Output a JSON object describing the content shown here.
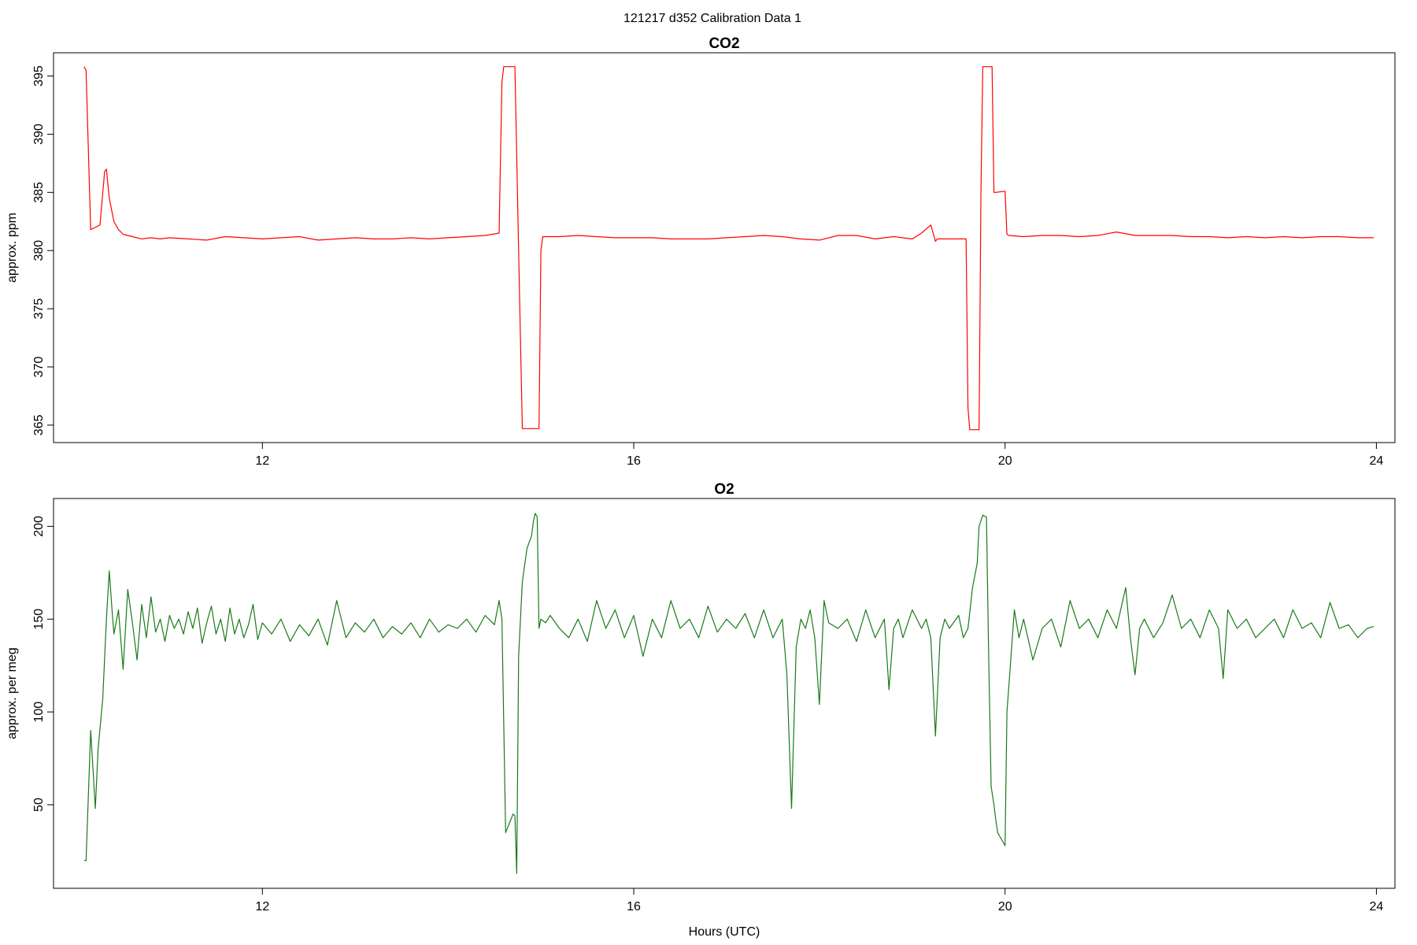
{
  "figure": {
    "title": "121217   d352   Calibration Data 1"
  },
  "chart_data": [
    {
      "type": "line",
      "title": "CO2",
      "xlabel": "",
      "ylabel": "approx. ppm",
      "xlim": [
        9.75,
        24.2
      ],
      "ylim": [
        363.5,
        397.0
      ],
      "xticks": [
        12,
        16,
        20,
        24
      ],
      "yticks": [
        365,
        370,
        375,
        380,
        385,
        390,
        395
      ],
      "grid": false,
      "series": [
        {
          "color": "#ff0000",
          "x": [
            10.08,
            10.1,
            10.15,
            10.2,
            10.25,
            10.3,
            10.32,
            10.35,
            10.4,
            10.45,
            10.5,
            10.6,
            10.7,
            10.8,
            10.9,
            11.0,
            11.2,
            11.4,
            11.6,
            11.8,
            12.0,
            12.2,
            12.4,
            12.6,
            12.8,
            13.0,
            13.2,
            13.4,
            13.6,
            13.8,
            14.0,
            14.2,
            14.4,
            14.55,
            14.58,
            14.6,
            14.62,
            14.72,
            14.76,
            14.8,
            14.9,
            14.98,
            15.0,
            15.02,
            15.2,
            15.4,
            15.6,
            15.8,
            16.0,
            16.2,
            16.4,
            16.6,
            16.8,
            17.0,
            17.2,
            17.4,
            17.6,
            17.8,
            18.0,
            18.2,
            18.4,
            18.6,
            18.8,
            19.0,
            19.1,
            19.2,
            19.25,
            19.27,
            19.3,
            19.4,
            19.5,
            19.58,
            19.6,
            19.62,
            19.72,
            19.74,
            19.76,
            19.86,
            19.88,
            19.9,
            20.0,
            20.02,
            20.04,
            20.2,
            20.4,
            20.6,
            20.8,
            21.0,
            21.2,
            21.4,
            21.6,
            21.8,
            22.0,
            22.2,
            22.4,
            22.6,
            22.8,
            23.0,
            23.2,
            23.4,
            23.6,
            23.8,
            23.97
          ],
          "y": [
            395.8,
            395.5,
            381.8,
            382.0,
            382.2,
            386.8,
            387.0,
            384.5,
            382.5,
            381.8,
            381.4,
            381.2,
            381.0,
            381.1,
            381.0,
            381.1,
            381.0,
            380.9,
            381.2,
            381.1,
            381.0,
            381.1,
            381.2,
            380.9,
            381.0,
            381.1,
            381.0,
            381.0,
            381.1,
            381.0,
            381.1,
            381.2,
            381.3,
            381.5,
            394.5,
            395.8,
            395.8,
            395.8,
            380.0,
            364.7,
            364.7,
            364.7,
            380.0,
            381.2,
            381.2,
            381.3,
            381.2,
            381.1,
            381.1,
            381.1,
            381.0,
            381.0,
            381.0,
            381.1,
            381.2,
            381.3,
            381.2,
            381.0,
            380.9,
            381.3,
            381.3,
            381.0,
            381.2,
            381.0,
            381.5,
            382.2,
            380.8,
            381.0,
            381.0,
            381.0,
            381.0,
            381.0,
            366.5,
            364.6,
            364.6,
            385.0,
            395.8,
            395.8,
            385.0,
            385.0,
            385.1,
            381.4,
            381.3,
            381.2,
            381.3,
            381.3,
            381.2,
            381.3,
            381.6,
            381.3,
            381.3,
            381.3,
            381.2,
            381.2,
            381.1,
            381.2,
            381.1,
            381.2,
            381.1,
            381.2,
            381.2,
            381.1,
            381.1
          ]
        }
      ]
    },
    {
      "type": "line",
      "title": "O2",
      "xlabel": "Hours (UTC)",
      "ylabel": "approx. per meg",
      "xlim": [
        9.75,
        24.2
      ],
      "ylim": [
        5,
        215
      ],
      "xticks": [
        12,
        16,
        20,
        24
      ],
      "yticks": [
        50,
        100,
        150,
        200
      ],
      "grid": false,
      "series": [
        {
          "color": "#1a7a1a",
          "x": [
            10.08,
            10.1,
            10.15,
            10.2,
            10.23,
            10.28,
            10.32,
            10.35,
            10.38,
            10.4,
            10.45,
            10.5,
            10.55,
            10.6,
            10.65,
            10.7,
            10.75,
            10.8,
            10.85,
            10.9,
            10.95,
            11.0,
            11.05,
            11.1,
            11.15,
            11.2,
            11.25,
            11.3,
            11.35,
            11.4,
            11.45,
            11.5,
            11.55,
            11.6,
            11.65,
            11.7,
            11.75,
            11.8,
            11.85,
            11.9,
            11.95,
            12.0,
            12.1,
            12.2,
            12.3,
            12.4,
            12.5,
            12.6,
            12.7,
            12.8,
            12.9,
            13.0,
            13.1,
            13.2,
            13.3,
            13.4,
            13.5,
            13.6,
            13.7,
            13.8,
            13.9,
            14.0,
            14.1,
            14.2,
            14.3,
            14.4,
            14.5,
            14.55,
            14.58,
            14.62,
            14.66,
            14.7,
            14.72,
            14.74,
            14.76,
            14.8,
            14.85,
            14.9,
            14.92,
            14.94,
            14.96,
            14.98,
            15.0,
            15.05,
            15.1,
            15.2,
            15.3,
            15.4,
            15.5,
            15.6,
            15.7,
            15.8,
            15.9,
            16.0,
            16.1,
            16.2,
            16.3,
            16.4,
            16.5,
            16.6,
            16.7,
            16.8,
            16.9,
            17.0,
            17.1,
            17.2,
            17.3,
            17.4,
            17.5,
            17.6,
            17.65,
            17.7,
            17.75,
            17.8,
            17.85,
            17.9,
            17.95,
            18.0,
            18.05,
            18.1,
            18.2,
            18.3,
            18.4,
            18.5,
            18.6,
            18.7,
            18.75,
            18.8,
            18.85,
            18.9,
            19.0,
            19.1,
            19.15,
            19.2,
            19.25,
            19.3,
            19.35,
            19.4,
            19.5,
            19.55,
            19.6,
            19.65,
            19.7,
            19.72,
            19.76,
            19.8,
            19.82,
            19.85,
            19.88,
            19.9,
            19.92,
            20.0,
            20.02,
            20.05,
            20.1,
            20.15,
            20.2,
            20.3,
            20.4,
            20.5,
            20.6,
            20.7,
            20.8,
            20.9,
            21.0,
            21.1,
            21.2,
            21.3,
            21.35,
            21.4,
            21.45,
            21.5,
            21.6,
            21.7,
            21.8,
            21.9,
            22.0,
            22.1,
            22.2,
            22.3,
            22.35,
            22.4,
            22.5,
            22.6,
            22.7,
            22.8,
            22.9,
            23.0,
            23.1,
            23.2,
            23.3,
            23.4,
            23.5,
            23.6,
            23.7,
            23.8,
            23.9,
            23.97
          ],
          "y": [
            20,
            20,
            90,
            48,
            80,
            107,
            150,
            176,
            155,
            142,
            155,
            123,
            166,
            148,
            128,
            158,
            140,
            162,
            143,
            150,
            138,
            152,
            145,
            150,
            142,
            154,
            145,
            156,
            137,
            148,
            157,
            142,
            150,
            138,
            156,
            142,
            150,
            140,
            147,
            158,
            139,
            148,
            142,
            150,
            138,
            147,
            141,
            150,
            136,
            160,
            140,
            148,
            143,
            150,
            140,
            146,
            142,
            148,
            140,
            150,
            143,
            147,
            145,
            150,
            143,
            152,
            147,
            160,
            150,
            35,
            40,
            45,
            44,
            13,
            130,
            170,
            188,
            195,
            203,
            207,
            205,
            145,
            150,
            148,
            152,
            145,
            140,
            150,
            138,
            160,
            145,
            155,
            140,
            152,
            130,
            150,
            140,
            160,
            145,
            150,
            140,
            157,
            143,
            150,
            145,
            153,
            140,
            155,
            140,
            150,
            120,
            48,
            135,
            150,
            145,
            155,
            140,
            104,
            160,
            148,
            145,
            150,
            138,
            155,
            140,
            150,
            112,
            145,
            150,
            140,
            155,
            145,
            150,
            140,
            87,
            140,
            150,
            145,
            152,
            140,
            145,
            167,
            180,
            200,
            206,
            205,
            140,
            60,
            50,
            42,
            35,
            28,
            100,
            120,
            155,
            140,
            150,
            128,
            145,
            150,
            135,
            160,
            145,
            150,
            140,
            155,
            145,
            167,
            140,
            120,
            145,
            150,
            140,
            148,
            163,
            145,
            150,
            140,
            155,
            145,
            118,
            155,
            145,
            150,
            140,
            145,
            150,
            140,
            155,
            145,
            148,
            140,
            159,
            145,
            147,
            140,
            145,
            146
          ]
        }
      ]
    }
  ]
}
